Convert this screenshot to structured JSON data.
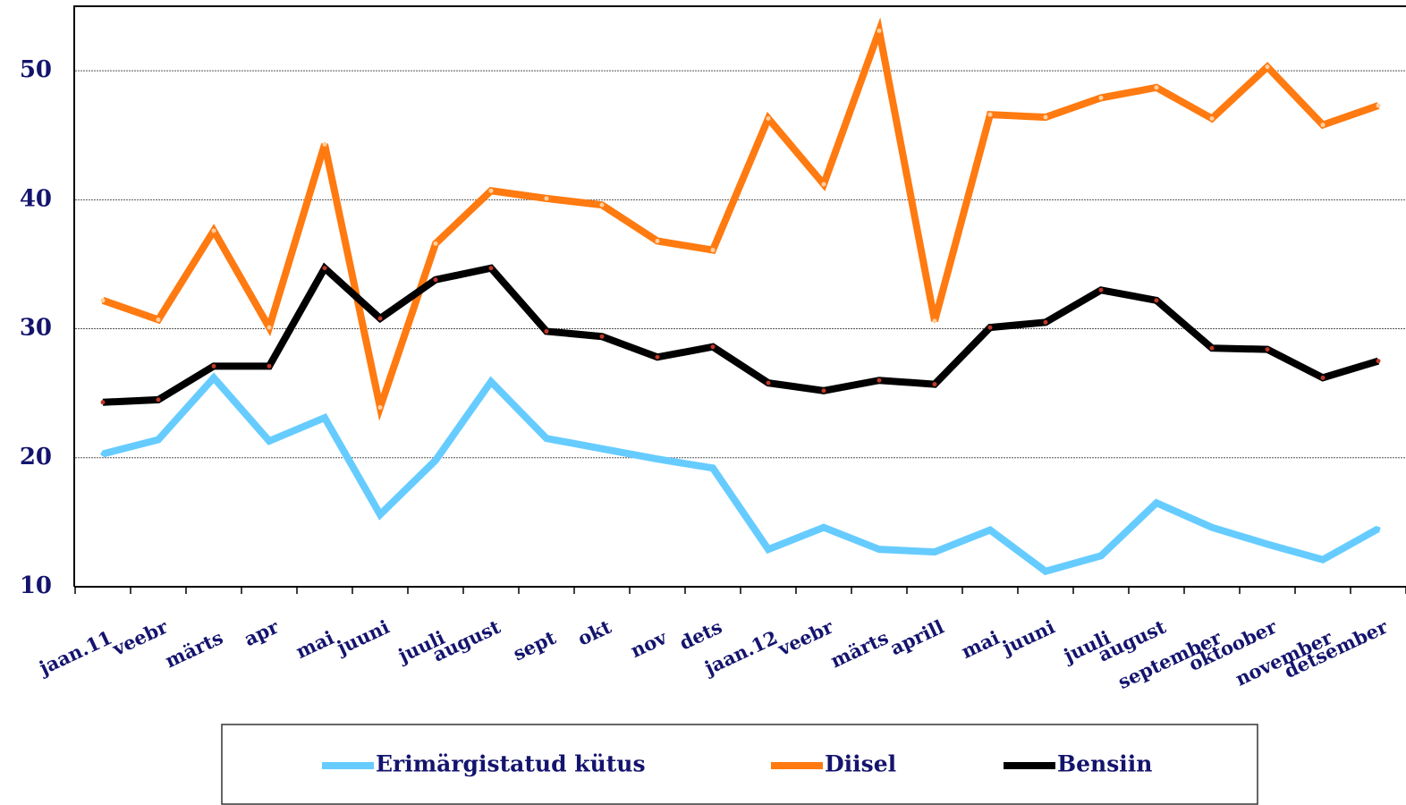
{
  "chart_data": {
    "type": "line",
    "categories": [
      "jaan.11",
      "veebr",
      "märts",
      "apr",
      "mai",
      "juuni",
      "juuli",
      "august",
      "sept",
      "okt",
      "nov",
      "dets",
      "jaan.12",
      "veebr",
      "märts",
      "aprill",
      "mai",
      "juuni",
      "juuli",
      "august",
      "september",
      "oktoober",
      "november",
      "detsember"
    ],
    "series": [
      {
        "name": "Erimärgistatud kütus",
        "color": "#66ccff",
        "values": [
          20.3,
          21.4,
          26.2,
          21.3,
          23.1,
          15.6,
          19.8,
          25.9,
          21.5,
          20.7,
          19.9,
          19.2,
          12.9,
          14.6,
          12.9,
          12.7,
          14.4,
          11.2,
          12.4,
          16.5,
          14.6,
          13.3,
          12.1,
          14.5
        ]
      },
      {
        "name": "Diisel",
        "color": "#ff7a10",
        "values": [
          32.2,
          30.7,
          37.6,
          30.1,
          44.3,
          23.9,
          36.6,
          40.7,
          40.1,
          39.6,
          36.8,
          36.1,
          46.3,
          41.2,
          53.1,
          30.6,
          46.6,
          46.4,
          47.9,
          48.7,
          46.3,
          50.3,
          45.8,
          47.3
        ]
      },
      {
        "name": "Bensiin",
        "color": "#000000",
        "values": [
          24.3,
          24.5,
          27.1,
          27.1,
          34.7,
          30.8,
          33.8,
          34.7,
          29.8,
          29.4,
          27.8,
          28.6,
          25.8,
          25.2,
          26.0,
          25.7,
          30.1,
          30.5,
          33.0,
          32.2,
          28.5,
          28.4,
          26.2,
          27.5
        ]
      }
    ],
    "ylim": [
      10,
      55
    ],
    "yticks": [
      10,
      20,
      30,
      40,
      50
    ],
    "grid": true,
    "legend": "bottom"
  }
}
